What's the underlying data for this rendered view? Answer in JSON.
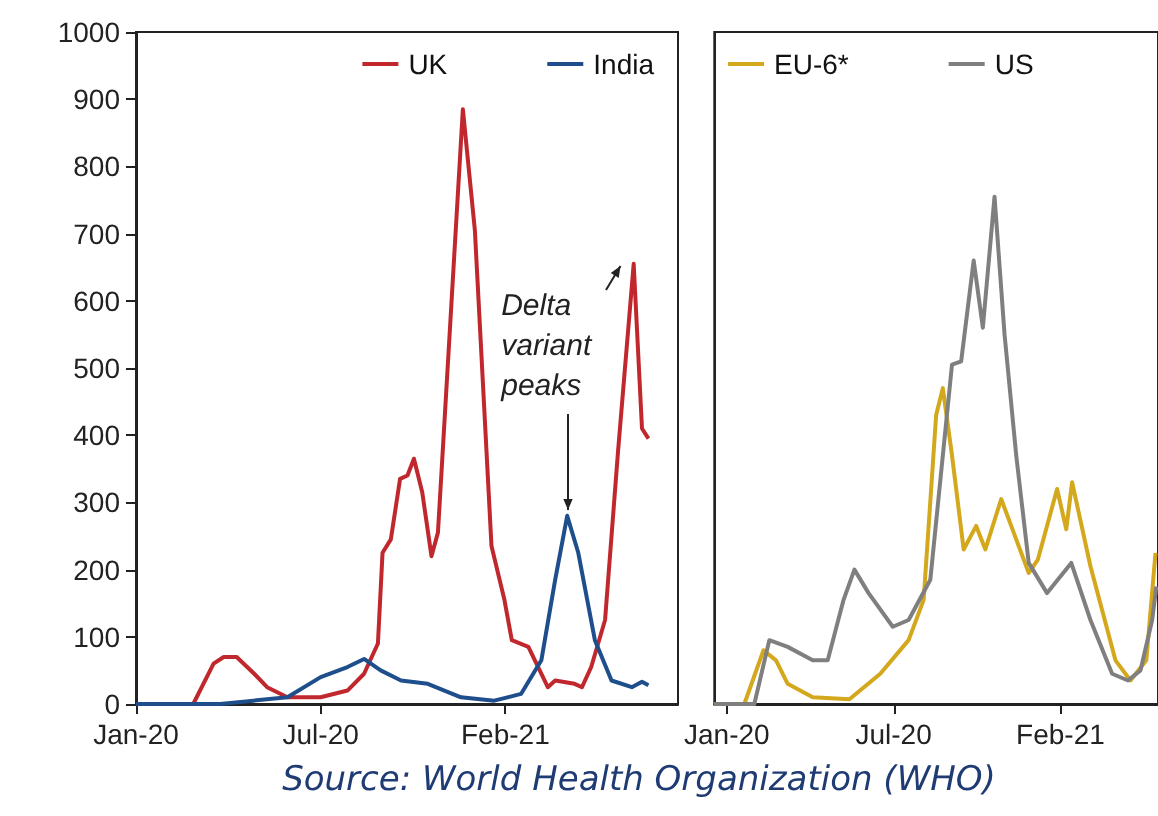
{
  "chart_data": [
    {
      "type": "line",
      "legend": "top right",
      "grid": false,
      "xlim": [
        "2020-01-01",
        "2021-08-10"
      ],
      "ylim": [
        0,
        1000
      ],
      "yticks": [
        0,
        100,
        200,
        300,
        400,
        500,
        600,
        700,
        800,
        900,
        1000
      ],
      "xticks": [
        {
          "value": "2020-01-01",
          "label": "Jan-20"
        },
        {
          "value": "2020-07-19",
          "label": "Jul-20"
        },
        {
          "value": "2021-02-04",
          "label": "Feb-21"
        }
      ],
      "series": [
        {
          "name": "UK",
          "color": "#c0282d",
          "x": [
            "2020-01-01",
            "2020-03-03",
            "2020-03-25",
            "2020-04-05",
            "2020-04-19",
            "2020-05-08",
            "2020-05-22",
            "2020-06-13",
            "2020-07-19",
            "2020-08-17",
            "2020-09-04",
            "2020-09-19",
            "2020-09-24",
            "2020-10-03",
            "2020-10-13",
            "2020-10-21",
            "2020-10-28",
            "2020-11-06",
            "2020-11-16",
            "2020-11-23",
            "2020-12-20",
            "2021-01-02",
            "2021-01-20",
            "2021-02-03",
            "2021-02-11",
            "2021-03-01",
            "2021-03-08",
            "2021-03-22",
            "2021-03-30",
            "2021-04-20",
            "2021-04-28",
            "2021-05-08",
            "2021-05-23",
            "2021-06-06",
            "2021-06-23",
            "2021-07-02",
            "2021-07-09"
          ],
          "values": [
            0,
            0,
            60,
            70,
            70,
            45,
            25,
            10,
            10,
            20,
            45,
            90,
            225,
            245,
            335,
            340,
            365,
            315,
            220,
            255,
            885,
            705,
            235,
            155,
            95,
            85,
            65,
            25,
            35,
            30,
            25,
            55,
            125,
            375,
            655,
            410,
            395
          ]
        },
        {
          "name": "India",
          "color": "#1f4e8c",
          "x": [
            "2020-01-01",
            "2020-04-01",
            "2020-06-13",
            "2020-07-19",
            "2020-08-17",
            "2020-09-04",
            "2020-09-22",
            "2020-10-14",
            "2020-11-12",
            "2020-12-18",
            "2021-01-23",
            "2021-02-21",
            "2021-03-15",
            "2021-03-30",
            "2021-04-12",
            "2021-04-24",
            "2021-05-12",
            "2021-05-30",
            "2021-06-21",
            "2021-07-02",
            "2021-07-09"
          ],
          "values": [
            0,
            0,
            10,
            40,
            55,
            67,
            50,
            35,
            30,
            10,
            5,
            15,
            65,
            185,
            280,
            225,
            95,
            35,
            25,
            33,
            28
          ]
        }
      ],
      "annotations": [
        {
          "text": "Delta\nvariant\npeaks",
          "x": "2021-04-12",
          "y": 280
        },
        "Source: World Health Organization (WHO)"
      ]
    },
    {
      "type": "line",
      "legend": "top left",
      "grid": false,
      "tick_labels": "x",
      "xlim": [
        "2019-12-17",
        "2021-06-01"
      ],
      "ylim": [
        0,
        1000
      ],
      "yticks": [
        0,
        100,
        200,
        300,
        400,
        500,
        600,
        700,
        800,
        900,
        1000
      ],
      "xticks": [
        {
          "value": "2020-01-01",
          "label": "Jan-20"
        },
        {
          "value": "2020-07-19",
          "label": "Jul-20"
        },
        {
          "value": "2021-02-04",
          "label": "Feb-21"
        }
      ],
      "series": [
        {
          "name": "EU-6*",
          "color": "#d4a81c",
          "x": [
            "2019-12-17",
            "2020-01-22",
            "2020-02-14",
            "2020-02-29",
            "2020-03-14",
            "2020-04-13",
            "2020-05-27",
            "2020-07-03",
            "2020-08-06",
            "2020-08-24",
            "2020-09-08",
            "2020-09-16",
            "2020-09-27",
            "2020-10-11",
            "2020-10-26",
            "2020-11-06",
            "2020-11-25",
            "2020-12-13",
            "2020-12-28",
            "2021-01-08",
            "2021-01-31",
            "2021-02-11",
            "2021-02-18",
            "2021-03-12",
            "2021-04-11",
            "2021-04-29",
            "2021-05-18",
            "2021-05-29"
          ],
          "values": [
            0,
            0,
            80,
            65,
            30,
            10,
            7,
            45,
            95,
            155,
            430,
            470,
            370,
            230,
            265,
            230,
            305,
            245,
            195,
            215,
            320,
            260,
            330,
            205,
            65,
            35,
            65,
            225
          ]
        },
        {
          "name": "US",
          "color": "#7f7f7f",
          "x": [
            "2019-12-17",
            "2020-02-03",
            "2020-02-21",
            "2020-03-14",
            "2020-04-13",
            "2020-05-01",
            "2020-05-20",
            "2020-06-02",
            "2020-06-19",
            "2020-07-18",
            "2020-08-06",
            "2020-09-01",
            "2020-09-27",
            "2020-10-08",
            "2020-10-23",
            "2020-11-03",
            "2020-11-17",
            "2020-11-29",
            "2020-12-13",
            "2020-12-28",
            "2021-01-19",
            "2021-02-17",
            "2021-03-12",
            "2021-04-07",
            "2021-04-26",
            "2021-05-11",
            "2021-05-25",
            "2021-05-30"
          ],
          "values": [
            0,
            0,
            95,
            85,
            65,
            65,
            155,
            200,
            165,
            115,
            125,
            185,
            505,
            510,
            660,
            560,
            755,
            550,
            370,
            210,
            165,
            210,
            125,
            45,
            35,
            50,
            125,
            175
          ]
        }
      ]
    }
  ]
}
